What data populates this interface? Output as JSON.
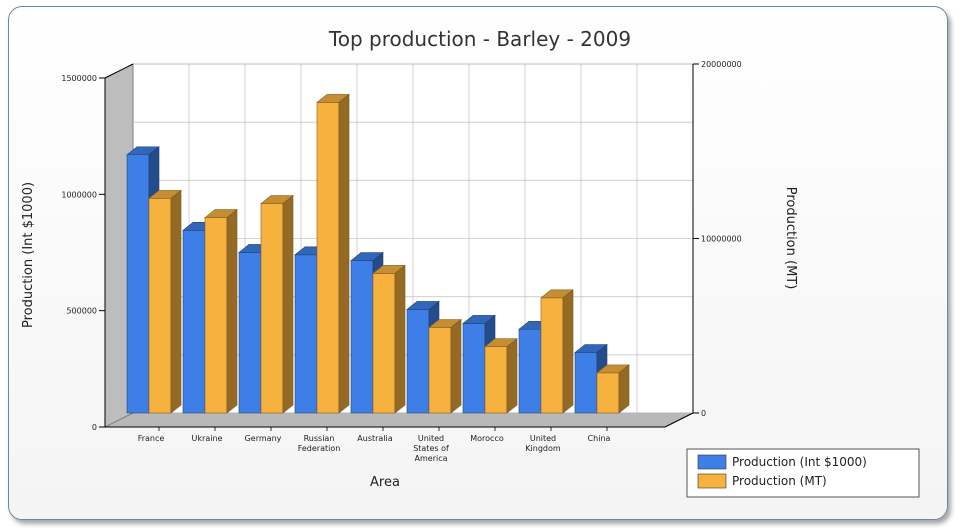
{
  "chart_data": {
    "type": "bar",
    "title": "Top production - Barley - 2009",
    "xlabel": "Area",
    "ylabel": "Production (Int $1000)",
    "y2label": "Production (MT)",
    "categories": [
      [
        "France"
      ],
      [
        "Ukraine"
      ],
      [
        "Germany"
      ],
      [
        "Russian",
        "Federation"
      ],
      [
        "Australia"
      ],
      [
        "United",
        "States of",
        "America"
      ],
      [
        "Morocco"
      ],
      [
        "United",
        "Kingdom"
      ],
      [
        "China"
      ]
    ],
    "ylim": [
      0,
      1500000
    ],
    "y2lim": [
      0,
      20000000
    ],
    "yticks": [
      "0",
      "500000",
      "1000000",
      "1500000"
    ],
    "y2ticks": [
      "0",
      "10000000",
      "20000000"
    ],
    "series": [
      {
        "name": "Production (Int $1000)",
        "axis": "left",
        "color": "#3d7fe6",
        "values": [
          1110000,
          785000,
          690000,
          680000,
          655000,
          445000,
          385000,
          360000,
          260000
        ]
      },
      {
        "name": "Production (MT)",
        "axis": "right",
        "color": "#f6b13e",
        "values": [
          12300000,
          11200000,
          12000000,
          17800000,
          8000000,
          4900000,
          3800000,
          6600000,
          2300000
        ]
      }
    ],
    "grid": true,
    "legend": "bottom-right"
  }
}
